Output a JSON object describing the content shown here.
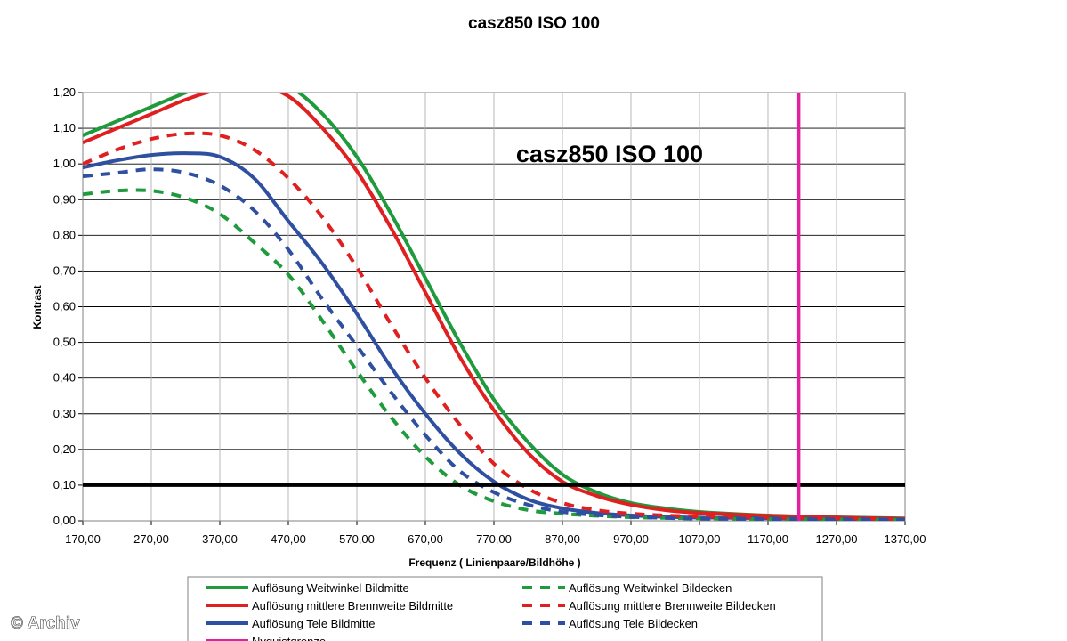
{
  "chart_data": {
    "type": "line",
    "title": "casz850   ISO 100",
    "inner_title": "casz850   ISO 100",
    "xlabel": "Frequenz ( Linienpaare/Bildhöhe )",
    "ylabel": "Kontrast",
    "xlim": [
      170,
      1370
    ],
    "ylim": [
      0,
      1.2
    ],
    "x_ticks": [
      "170,00",
      "270,00",
      "370,00",
      "470,00",
      "570,00",
      "670,00",
      "770,00",
      "870,00",
      "970,00",
      "1070,00",
      "1170,00",
      "1270,00",
      "1370,00"
    ],
    "y_ticks": [
      "0,00",
      "0,10",
      "0,20",
      "0,30",
      "0,40",
      "0,50",
      "0,60",
      "0,70",
      "0,80",
      "0,90",
      "1,00",
      "1,10",
      "1,20"
    ],
    "grid": true,
    "reference_line": {
      "y": 0.1,
      "color": "#000000"
    },
    "nyquist": {
      "x": 1215,
      "name": "Nyquistgrenze",
      "color": "#e020a0"
    },
    "series": [
      {
        "name": "Auflösung Weitwinkel Bildmitte",
        "color": "#1f9a3c",
        "dashed": false,
        "x": [
          170,
          220,
          270,
          320,
          370,
          420,
          470,
          520,
          570,
          620,
          670,
          720,
          770,
          820,
          870,
          920,
          970,
          1020,
          1070,
          1170,
          1270,
          1370
        ],
        "y": [
          1.08,
          1.12,
          1.16,
          1.2,
          1.24,
          1.25,
          1.22,
          1.14,
          1.02,
          0.86,
          0.68,
          0.5,
          0.34,
          0.22,
          0.13,
          0.08,
          0.05,
          0.035,
          0.025,
          0.015,
          0.01,
          0.007
        ]
      },
      {
        "name": "Auflösung mittlere Brennweite Bildmitte",
        "color": "#e02020",
        "dashed": false,
        "x": [
          170,
          220,
          270,
          320,
          370,
          420,
          470,
          520,
          570,
          620,
          670,
          720,
          770,
          820,
          870,
          920,
          970,
          1020,
          1070,
          1170,
          1270,
          1370
        ],
        "y": [
          1.06,
          1.1,
          1.14,
          1.18,
          1.21,
          1.22,
          1.19,
          1.1,
          0.98,
          0.82,
          0.64,
          0.46,
          0.31,
          0.19,
          0.11,
          0.07,
          0.045,
          0.03,
          0.022,
          0.014,
          0.009,
          0.006
        ]
      },
      {
        "name": "Auflösung Tele Bildmitte",
        "color": "#2f4fa0",
        "dashed": false,
        "x": [
          170,
          220,
          270,
          320,
          370,
          420,
          470,
          520,
          570,
          620,
          670,
          720,
          770,
          820,
          870,
          920,
          970,
          1020,
          1070,
          1170,
          1270,
          1370
        ],
        "y": [
          0.99,
          1.01,
          1.025,
          1.03,
          1.02,
          0.96,
          0.84,
          0.72,
          0.58,
          0.43,
          0.3,
          0.19,
          0.11,
          0.06,
          0.035,
          0.022,
          0.015,
          0.011,
          0.009,
          0.007,
          0.005,
          0.004
        ]
      },
      {
        "name": "Auflösung Weitwinkel Bildecken",
        "color": "#1f9a3c",
        "dashed": true,
        "x": [
          170,
          220,
          270,
          320,
          370,
          420,
          470,
          520,
          570,
          620,
          670,
          720,
          770,
          820,
          870,
          920,
          970,
          1020,
          1070,
          1170,
          1270,
          1370
        ],
        "y": [
          0.915,
          0.925,
          0.925,
          0.905,
          0.86,
          0.78,
          0.69,
          0.56,
          0.42,
          0.29,
          0.18,
          0.1,
          0.055,
          0.03,
          0.02,
          0.014,
          0.01,
          0.008,
          0.007,
          0.005,
          0.004,
          0.003
        ]
      },
      {
        "name": "Auflösung mittlere Brennweite Bildecken",
        "color": "#e02020",
        "dashed": true,
        "x": [
          170,
          220,
          270,
          320,
          370,
          420,
          470,
          520,
          570,
          620,
          670,
          720,
          770,
          820,
          870,
          920,
          970,
          1020,
          1070,
          1170,
          1270,
          1370
        ],
        "y": [
          1.0,
          1.04,
          1.07,
          1.085,
          1.08,
          1.04,
          0.96,
          0.85,
          0.71,
          0.55,
          0.4,
          0.27,
          0.16,
          0.09,
          0.05,
          0.03,
          0.02,
          0.015,
          0.012,
          0.009,
          0.007,
          0.005
        ]
      },
      {
        "name": "Auflösung Tele Bildecken",
        "color": "#2f4fa0",
        "dashed": true,
        "x": [
          170,
          220,
          270,
          320,
          370,
          420,
          470,
          520,
          570,
          620,
          670,
          720,
          770,
          820,
          870,
          920,
          970,
          1020,
          1070,
          1170,
          1270,
          1370
        ],
        "y": [
          0.965,
          0.975,
          0.985,
          0.975,
          0.94,
          0.87,
          0.76,
          0.62,
          0.49,
          0.36,
          0.24,
          0.14,
          0.08,
          0.045,
          0.025,
          0.016,
          0.011,
          0.008,
          0.006,
          0.005,
          0.004,
          0.003
        ]
      }
    ],
    "legend": [
      {
        "name": "Auflösung Weitwinkel Bildmitte",
        "color": "#1f9a3c",
        "dashed": false
      },
      {
        "name": "Auflösung mittlere Brennweite Bildmitte",
        "color": "#e02020",
        "dashed": false
      },
      {
        "name": "Auflösung Tele Bildmitte",
        "color": "#2f4fa0",
        "dashed": false
      },
      {
        "name": "Nyquistgrenze",
        "color": "#e020a0",
        "dashed": false
      },
      {
        "name": "Auflösung Weitwinkel Bildecken",
        "color": "#1f9a3c",
        "dashed": true
      },
      {
        "name": "Auflösung mittlere Brennweite Bildecken",
        "color": "#e02020",
        "dashed": true
      },
      {
        "name": "Auflösung Tele Bildecken",
        "color": "#2f4fa0",
        "dashed": true
      }
    ],
    "legend_position": "bottom"
  },
  "watermark": "© Archiv"
}
